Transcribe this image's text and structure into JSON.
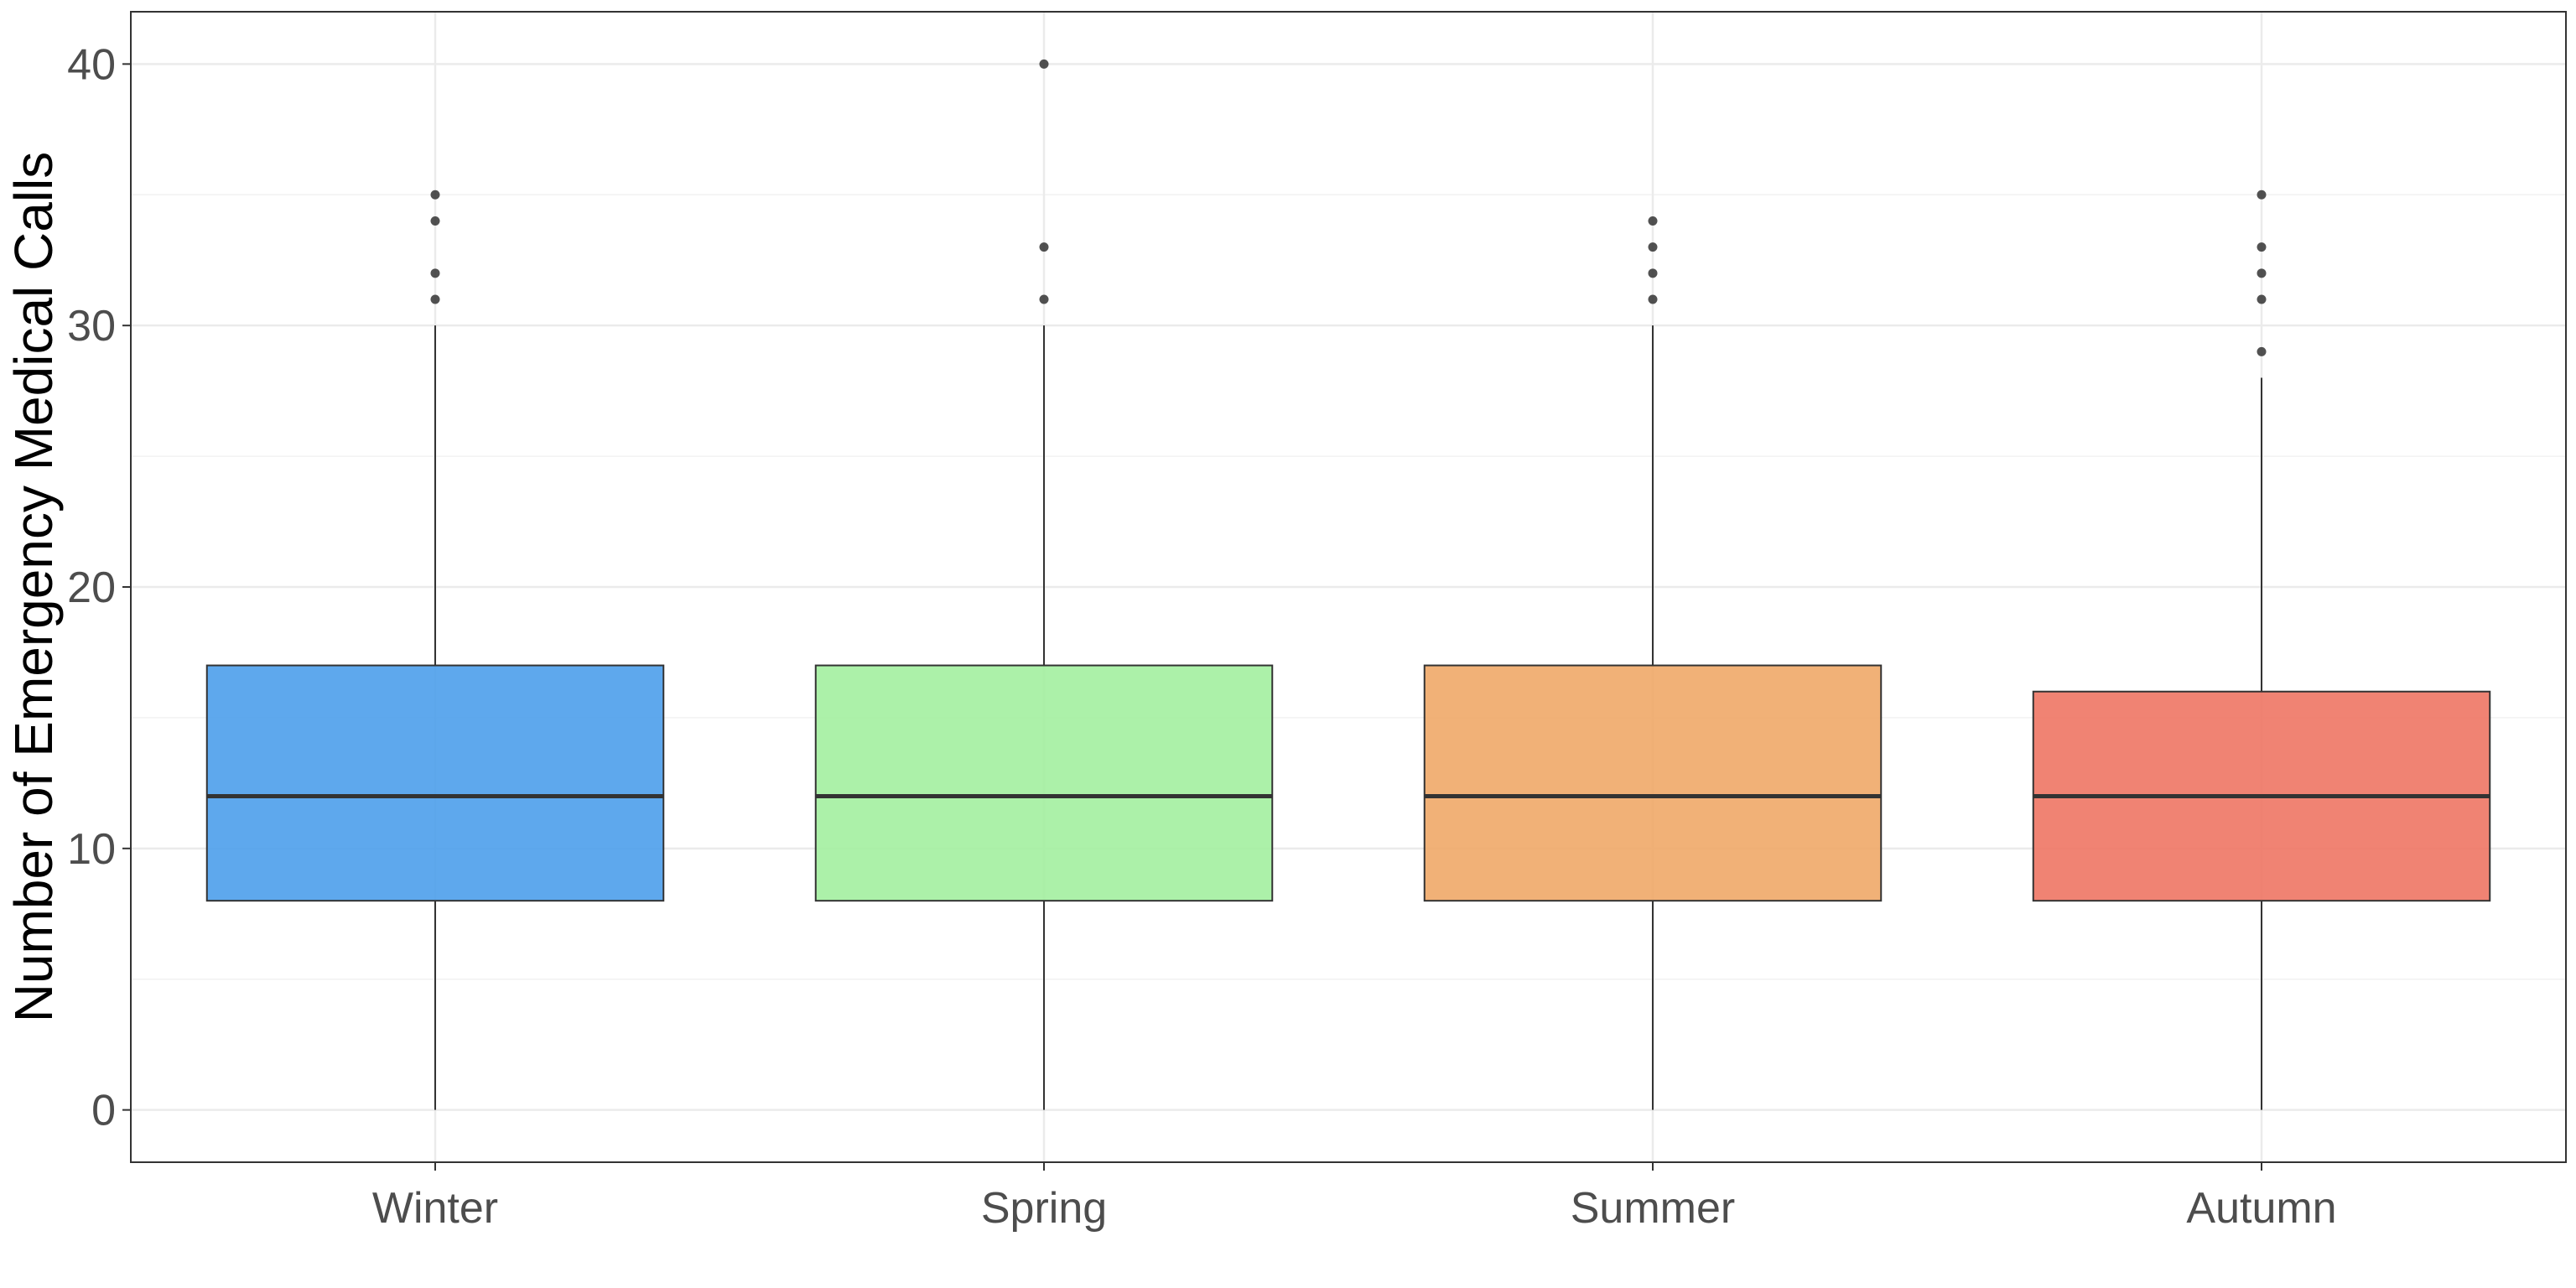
{
  "chart_data": {
    "type": "boxplot",
    "title": "",
    "xlabel": "",
    "ylabel": "Number of Emergency Medical Calls",
    "ylim": [
      -2,
      42
    ],
    "yticks": [
      0,
      10,
      20,
      30,
      40
    ],
    "ytick_labels": [
      "0",
      "10",
      "20",
      "30",
      "40"
    ],
    "grid": true,
    "legend": "none",
    "categories": [
      "Winter",
      "Spring",
      "Summer",
      "Autumn"
    ],
    "boxes": [
      {
        "category": "Winter",
        "min": 0,
        "q1": 8,
        "median": 12,
        "q3": 17,
        "max": 30,
        "outliers": [
          31,
          32,
          34,
          35
        ],
        "color": "#4c9eeb"
      },
      {
        "category": "Spring",
        "min": 0,
        "q1": 8,
        "median": 12,
        "q3": 17,
        "max": 30,
        "outliers": [
          31,
          33,
          40
        ],
        "color": "#a3f0a0"
      },
      {
        "category": "Summer",
        "min": 0,
        "q1": 8,
        "median": 12,
        "q3": 17,
        "max": 30,
        "outliers": [
          31,
          32,
          33,
          34
        ],
        "color": "#f0a868"
      },
      {
        "category": "Autumn",
        "min": 0,
        "q1": 8,
        "median": 12,
        "q3": 16,
        "max": 28,
        "outliers": [
          29,
          31,
          32,
          33,
          35
        ],
        "color": "#ee7564"
      }
    ]
  }
}
